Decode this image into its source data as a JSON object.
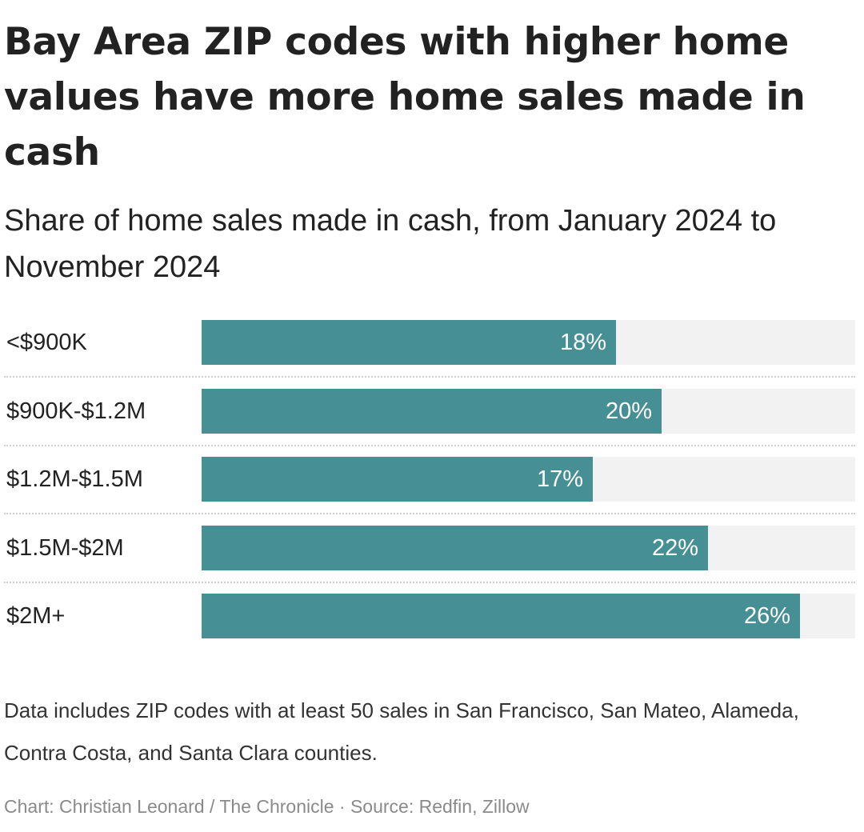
{
  "header": {
    "title": "Bay Area ZIP codes with higher home values have more home sales made in cash",
    "subtitle": "Share of home sales made in cash, from January 2024 to November 2024"
  },
  "chart_data": {
    "type": "bar",
    "orientation": "horizontal",
    "categories": [
      "<$900K",
      "$900K-$1.2M",
      "$1.2M-$1.5M",
      "$1.5M-$2M",
      "$2M+"
    ],
    "values": [
      18,
      20,
      17,
      22,
      26
    ],
    "value_labels": [
      "18%",
      "20%",
      "17%",
      "22%",
      "26%"
    ],
    "xlim": [
      0,
      28.4
    ],
    "colors": {
      "bar": "#468f94",
      "track": "#f2f2f2",
      "label": "#ffffff"
    },
    "grid": false
  },
  "footer": {
    "note": "Data includes ZIP codes with at least 50 sales in San Francisco, San Mateo, Alameda, Contra Costa, and Santa Clara counties.",
    "credit": "Chart: Christian Leonard / The Chronicle · Source: Redfin, Zillow"
  }
}
